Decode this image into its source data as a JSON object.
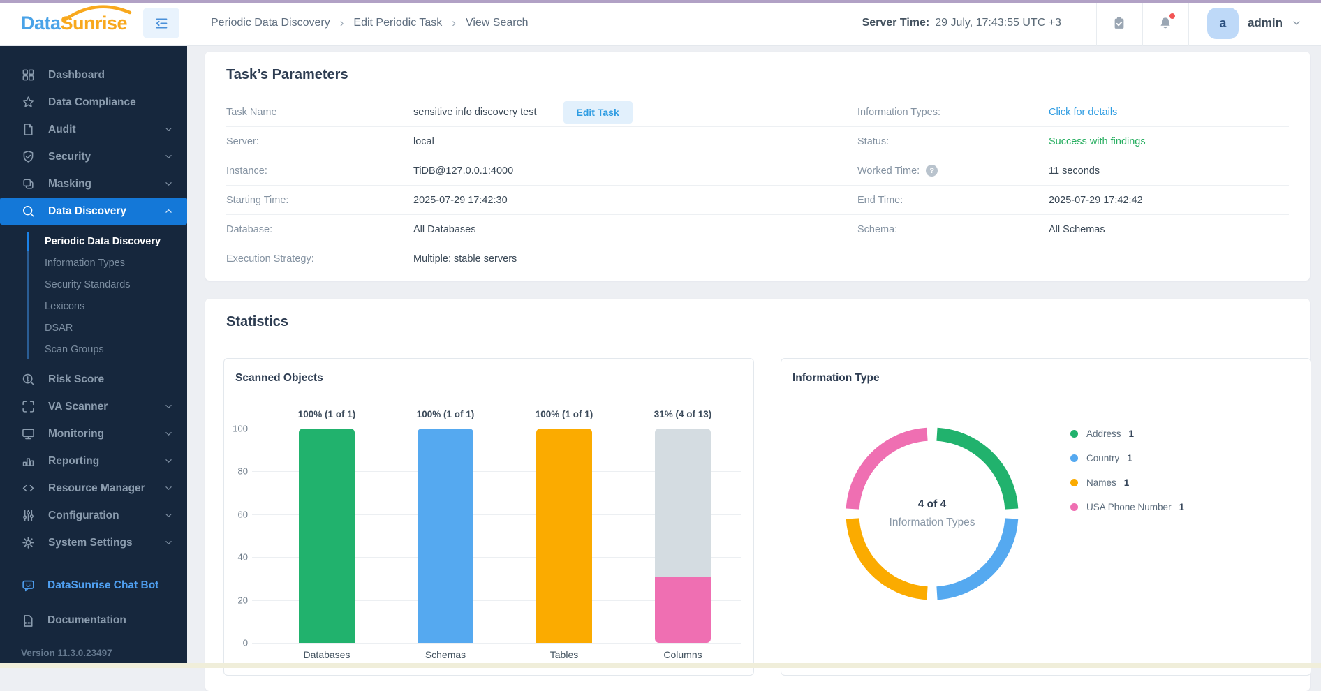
{
  "header": {
    "logo_part1": "Data",
    "logo_part2": "Sunrise",
    "breadcrumb": {
      "items": [
        "Periodic Data Discovery",
        "Edit Periodic Task",
        "View Search"
      ],
      "separator": "›"
    },
    "server_time_label": "Server Time:",
    "server_time_value": "29 July, 17:43:55 UTC +3",
    "user_initial": "a",
    "user_name": "admin"
  },
  "sidebar": {
    "items": [
      {
        "label": "Dashboard",
        "icon": "dashboard-grid-icon"
      },
      {
        "label": "Data Compliance",
        "icon": "star-icon"
      },
      {
        "label": "Audit",
        "icon": "document-icon",
        "chevron": "down"
      },
      {
        "label": "Security",
        "icon": "shield-check-icon",
        "chevron": "down"
      },
      {
        "label": "Masking",
        "icon": "masking-layers-icon",
        "chevron": "down"
      },
      {
        "label": "Data Discovery",
        "icon": "search-icon",
        "chevron": "up",
        "active": true,
        "submenu": [
          {
            "label": "Periodic Data Discovery",
            "active": true
          },
          {
            "label": "Information Types"
          },
          {
            "label": "Security Standards"
          },
          {
            "label": "Lexicons"
          },
          {
            "label": "DSAR"
          },
          {
            "label": "Scan Groups"
          }
        ]
      },
      {
        "label": "Risk Score",
        "icon": "risk-score-icon"
      },
      {
        "label": "VA Scanner",
        "icon": "scanner-frame-icon",
        "chevron": "down"
      },
      {
        "label": "Monitoring",
        "icon": "monitor-icon",
        "chevron": "down"
      },
      {
        "label": "Reporting",
        "icon": "bar-chart-icon",
        "chevron": "down"
      },
      {
        "label": "Resource Manager",
        "icon": "code-icon",
        "chevron": "down"
      },
      {
        "label": "Configuration",
        "icon": "sliders-icon",
        "chevron": "down"
      },
      {
        "label": "System Settings",
        "icon": "gear-icon",
        "chevron": "down"
      }
    ],
    "footer": {
      "chat_bot": "DataSunrise Chat Bot",
      "documentation": "Documentation",
      "version": "Version 11.3.0.23497"
    }
  },
  "task_parameters": {
    "title": "Task’s Parameters",
    "rows": [
      {
        "left": {
          "label": "Task Name",
          "value": "sensitive info discovery test",
          "button": "Edit Task"
        },
        "right": {
          "label": "Information Types:",
          "value": "Click for details",
          "style": "link"
        }
      },
      {
        "left": {
          "label": "Server:",
          "value": "local"
        },
        "right": {
          "label": "Status:",
          "value": "Success with findings",
          "style": "success"
        }
      },
      {
        "left": {
          "label": "Instance:",
          "value": "TiDB@127.0.0.1:4000"
        },
        "right": {
          "label": "Worked Time:",
          "value": "11 seconds",
          "help": true
        }
      },
      {
        "left": {
          "label": "Starting Time:",
          "value": "2025-07-29 17:42:30"
        },
        "right": {
          "label": "End Time:",
          "value": "2025-07-29 17:42:42"
        }
      },
      {
        "left": {
          "label": "Database:",
          "value": "All Databases"
        },
        "right": {
          "label": "Schema:",
          "value": "All Schemas"
        }
      },
      {
        "left": {
          "label": "Execution Strategy:",
          "value": "Multiple: stable servers"
        },
        "right": null
      }
    ]
  },
  "statistics": {
    "title": "Statistics"
  },
  "chart_data": [
    {
      "type": "bar",
      "title": "Scanned Objects",
      "categories": [
        "Databases",
        "Schemas",
        "Tables",
        "Columns"
      ],
      "values": [
        100,
        100,
        100,
        31
      ],
      "labels": [
        "100% (1 of 1)",
        "100% (1 of 1)",
        "100% (1 of 1)",
        "31% (4 of 13)"
      ],
      "counts": [
        {
          "scanned": 1,
          "total": 1
        },
        {
          "scanned": 1,
          "total": 1
        },
        {
          "scanned": 1,
          "total": 1
        },
        {
          "scanned": 4,
          "total": 13
        }
      ],
      "xlabel": "",
      "ylabel": "",
      "ylim": [
        0,
        100
      ],
      "yticks": [
        0,
        20,
        40,
        60,
        80,
        100
      ],
      "grid": true,
      "colors": [
        "#21b26d",
        "#55a9f0",
        "#fbab00",
        "#ef6fb2"
      ],
      "remainder_color": "#d4dce1"
    },
    {
      "type": "donut",
      "title": "Information Type",
      "center_label": "4 of 4",
      "center_sublabel": "Information Types",
      "legend_position": "right",
      "segments": [
        {
          "label": "Address",
          "value": 1,
          "color": "#21b26d"
        },
        {
          "label": "Country",
          "value": 1,
          "color": "#55a9f0"
        },
        {
          "label": "Names",
          "value": 1,
          "color": "#fbab00"
        },
        {
          "label": "USA Phone Number",
          "value": 1,
          "color": "#ef6fb2"
        }
      ]
    }
  ],
  "colors": {
    "accent_blue": "#1478d8",
    "link_blue": "#2e9ce2",
    "success_green": "#27ae60",
    "sidebar_bg": "#16273d",
    "top_accent": "#b1a1c5"
  }
}
